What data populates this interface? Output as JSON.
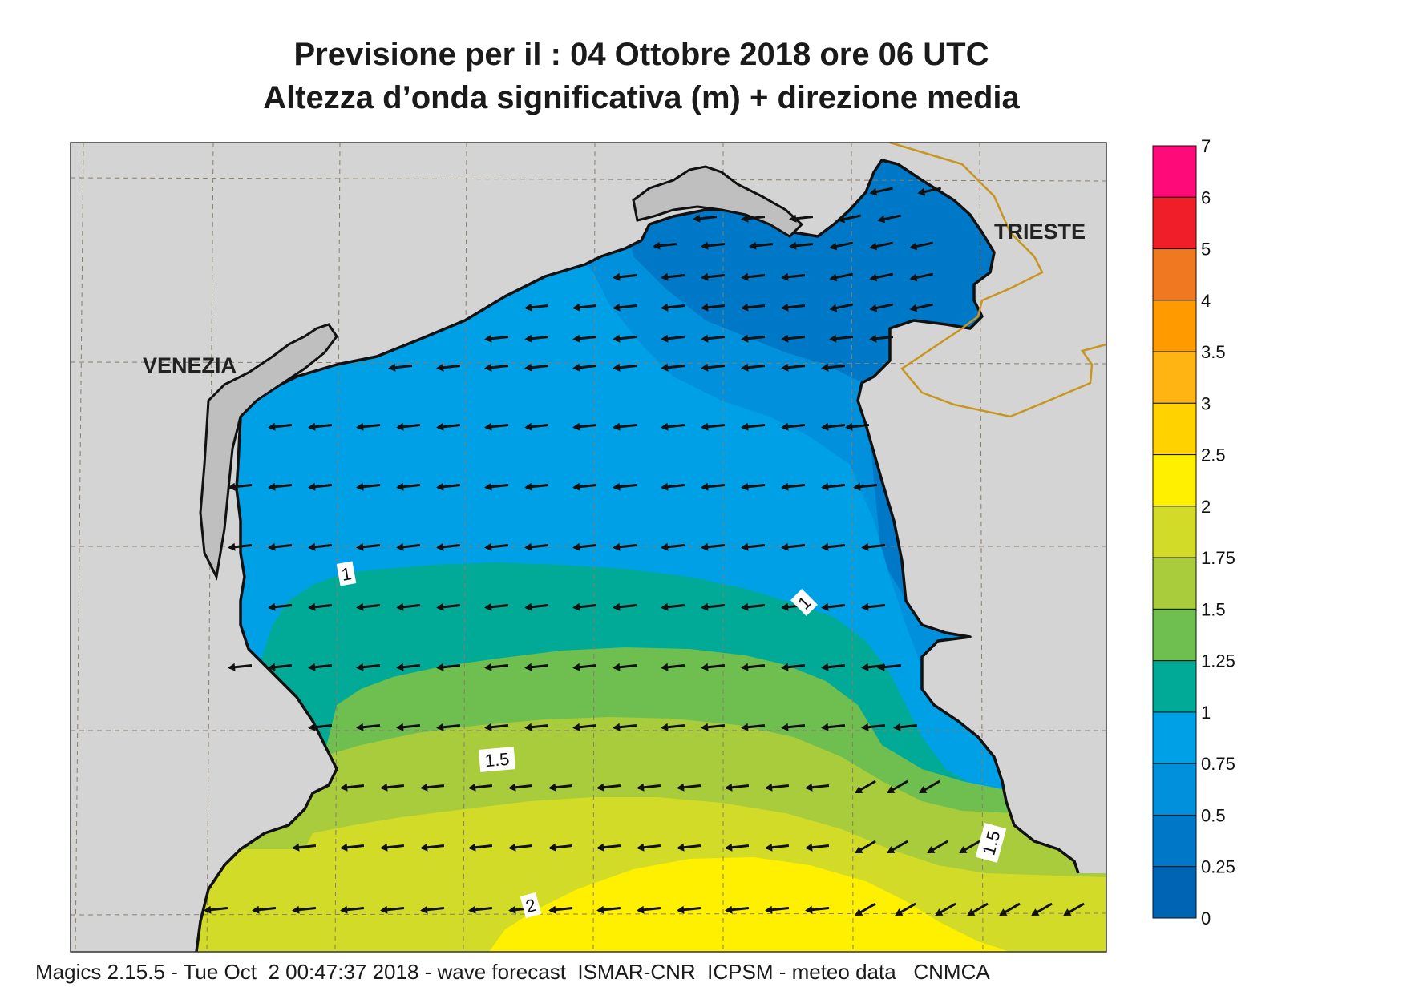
{
  "title": {
    "line1": "Previsione per il  :  04  Ottobre  2018   ore 06 UTC",
    "line2": "Altezza d’onda significativa (m) + direzione media"
  },
  "labels": {
    "venezia": "VENEZIA",
    "trieste": "TRIESTE"
  },
  "contour_labels": [
    "1",
    "1",
    "1.5",
    "1.5",
    "2"
  ],
  "legend": {
    "levels": [
      "7",
      "6",
      "5",
      "4",
      "3.5",
      "3",
      "2.5",
      "2",
      "1.75",
      "1.5",
      "1.25",
      "1",
      "0.75",
      "0.5",
      "0.25",
      "0"
    ],
    "colors": [
      "#ff0a78",
      "#f01e28",
      "#f07820",
      "#ff9a00",
      "#ffb414",
      "#ffd200",
      "#fff000",
      "#d2dc28",
      "#a8cc3c",
      "#6ebe50",
      "#00aa96",
      "#00a0e6",
      "#0090dc",
      "#0078c8",
      "#0064b4"
    ]
  },
  "colors": {
    "land": "#d4d4d4",
    "grid": "#8a7d6a",
    "coast": "#111111",
    "border": "#c8961e",
    "arrow": "#111111"
  },
  "footer": "Magics 2.15.5 - Tue Oct  2 00:47:37 2018 - wave forecast  ISMAR-CNR  ICPSM - meteo data   CNMCA"
}
